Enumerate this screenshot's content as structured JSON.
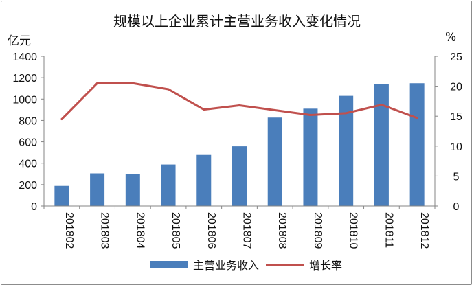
{
  "chart_data": {
    "type": "bar+line",
    "title": "规模以上企业累计主营业务收入变化情况",
    "categories": [
      "201802",
      "201803",
      "201804",
      "201805",
      "201806",
      "201807",
      "201808",
      "201809",
      "201810",
      "201811",
      "201812"
    ],
    "series": [
      {
        "name": "主营业务收入",
        "type": "bar",
        "axis": "left",
        "color": "#4a7ebb",
        "values": [
          188,
          305,
          298,
          388,
          477,
          558,
          827,
          910,
          1030,
          1142,
          1148
        ]
      },
      {
        "name": "增长率",
        "type": "line",
        "axis": "right",
        "color": "#c0504d",
        "values": [
          14.5,
          20.5,
          20.5,
          19.5,
          16.1,
          16.8,
          16.0,
          15.2,
          15.5,
          16.9,
          14.7
        ]
      }
    ],
    "y_left": {
      "label": "亿元",
      "ylim": [
        0,
        1400
      ],
      "ticks": [
        "0",
        "200",
        "400",
        "600",
        "800",
        "1000",
        "1200",
        "1400"
      ]
    },
    "y_right": {
      "label": "%",
      "ylim": [
        0,
        25
      ],
      "ticks": [
        "0",
        "5",
        "10",
        "15",
        "20",
        "25"
      ]
    },
    "grid": false,
    "legend_position": "bottom"
  }
}
